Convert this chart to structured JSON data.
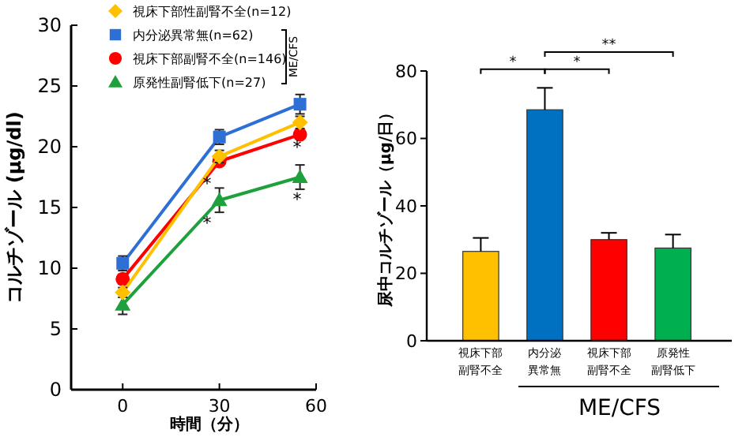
{
  "chart_data": [
    {
      "type": "line",
      "xlabel": "時間（分）",
      "ylabel": "コルチゾール (μg/dl)",
      "x": [
        0,
        30,
        55
      ],
      "xlim": [
        -16,
        60
      ],
      "xticks": [
        0,
        30,
        60
      ],
      "ylim": [
        0,
        30
      ],
      "yticks": [
        0,
        5,
        10,
        15,
        20,
        25,
        30
      ],
      "legend": "top",
      "grid": false,
      "series": [
        {
          "name": "視床下部性副腎不全(n=12)",
          "color": "#ffc000",
          "marker": "diamond",
          "values": [
            8,
            19.2,
            22
          ],
          "errors": [
            0.4,
            0.5,
            0.5
          ]
        },
        {
          "name": "内分泌異常無(n=62)",
          "color": "#2e6fd6",
          "marker": "square",
          "values": [
            10.4,
            20.8,
            23.5
          ],
          "errors": [
            0.6,
            0.6,
            0.8
          ]
        },
        {
          "name": "視床下部副腎不全(n=146)",
          "color": "#ff0000",
          "marker": "circle",
          "values": [
            9.1,
            18.8,
            21
          ],
          "errors": [
            0.4,
            null,
            null
          ]
        },
        {
          "name": "原発性副腎低下(n=27)",
          "color": "#1ea03c",
          "marker": "triangle",
          "values": [
            7,
            15.6,
            17.5
          ],
          "errors": [
            0.8,
            1,
            1
          ]
        }
      ],
      "annotations": [
        "*",
        "*",
        "*",
        "*",
        "ME/CFS"
      ]
    },
    {
      "type": "bar",
      "ylabel": "尿中コルチゾール（μg/日）",
      "categories": [
        "視床下部副腎不全",
        "内分泌異常無",
        "視床下部副腎不全",
        "原発性副腎低下"
      ],
      "values": [
        26.5,
        68.5,
        30,
        27.5
      ],
      "errors": [
        4,
        6.5,
        2,
        4
      ],
      "colors": [
        "#ffc000",
        "#0070c0",
        "#ff0000",
        "#00b050"
      ],
      "ylim": [
        0,
        80
      ],
      "yticks": [
        0,
        20,
        40,
        60,
        80
      ],
      "grid": false,
      "annotations": [
        "*",
        "*",
        "**",
        "ME/CFS"
      ]
    }
  ]
}
